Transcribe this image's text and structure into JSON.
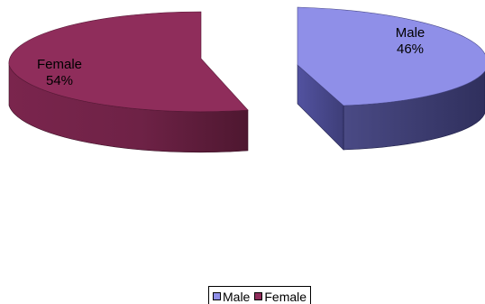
{
  "chart_data": {
    "type": "pie",
    "style": "3d-exploded",
    "slices": [
      {
        "label": "Male",
        "value": 46,
        "display": "46%",
        "color": "#8F8FE8",
        "side_color": "#3E3E74"
      },
      {
        "label": "Female",
        "value": 54,
        "display": "54%",
        "color": "#8F2D5B",
        "side_color": "#5F1C3A"
      }
    ],
    "legend": {
      "position": "bottom",
      "entries": [
        {
          "label": "Male",
          "color": "#8F8FE8"
        },
        {
          "label": "Female",
          "color": "#8F2D5B"
        }
      ]
    }
  }
}
